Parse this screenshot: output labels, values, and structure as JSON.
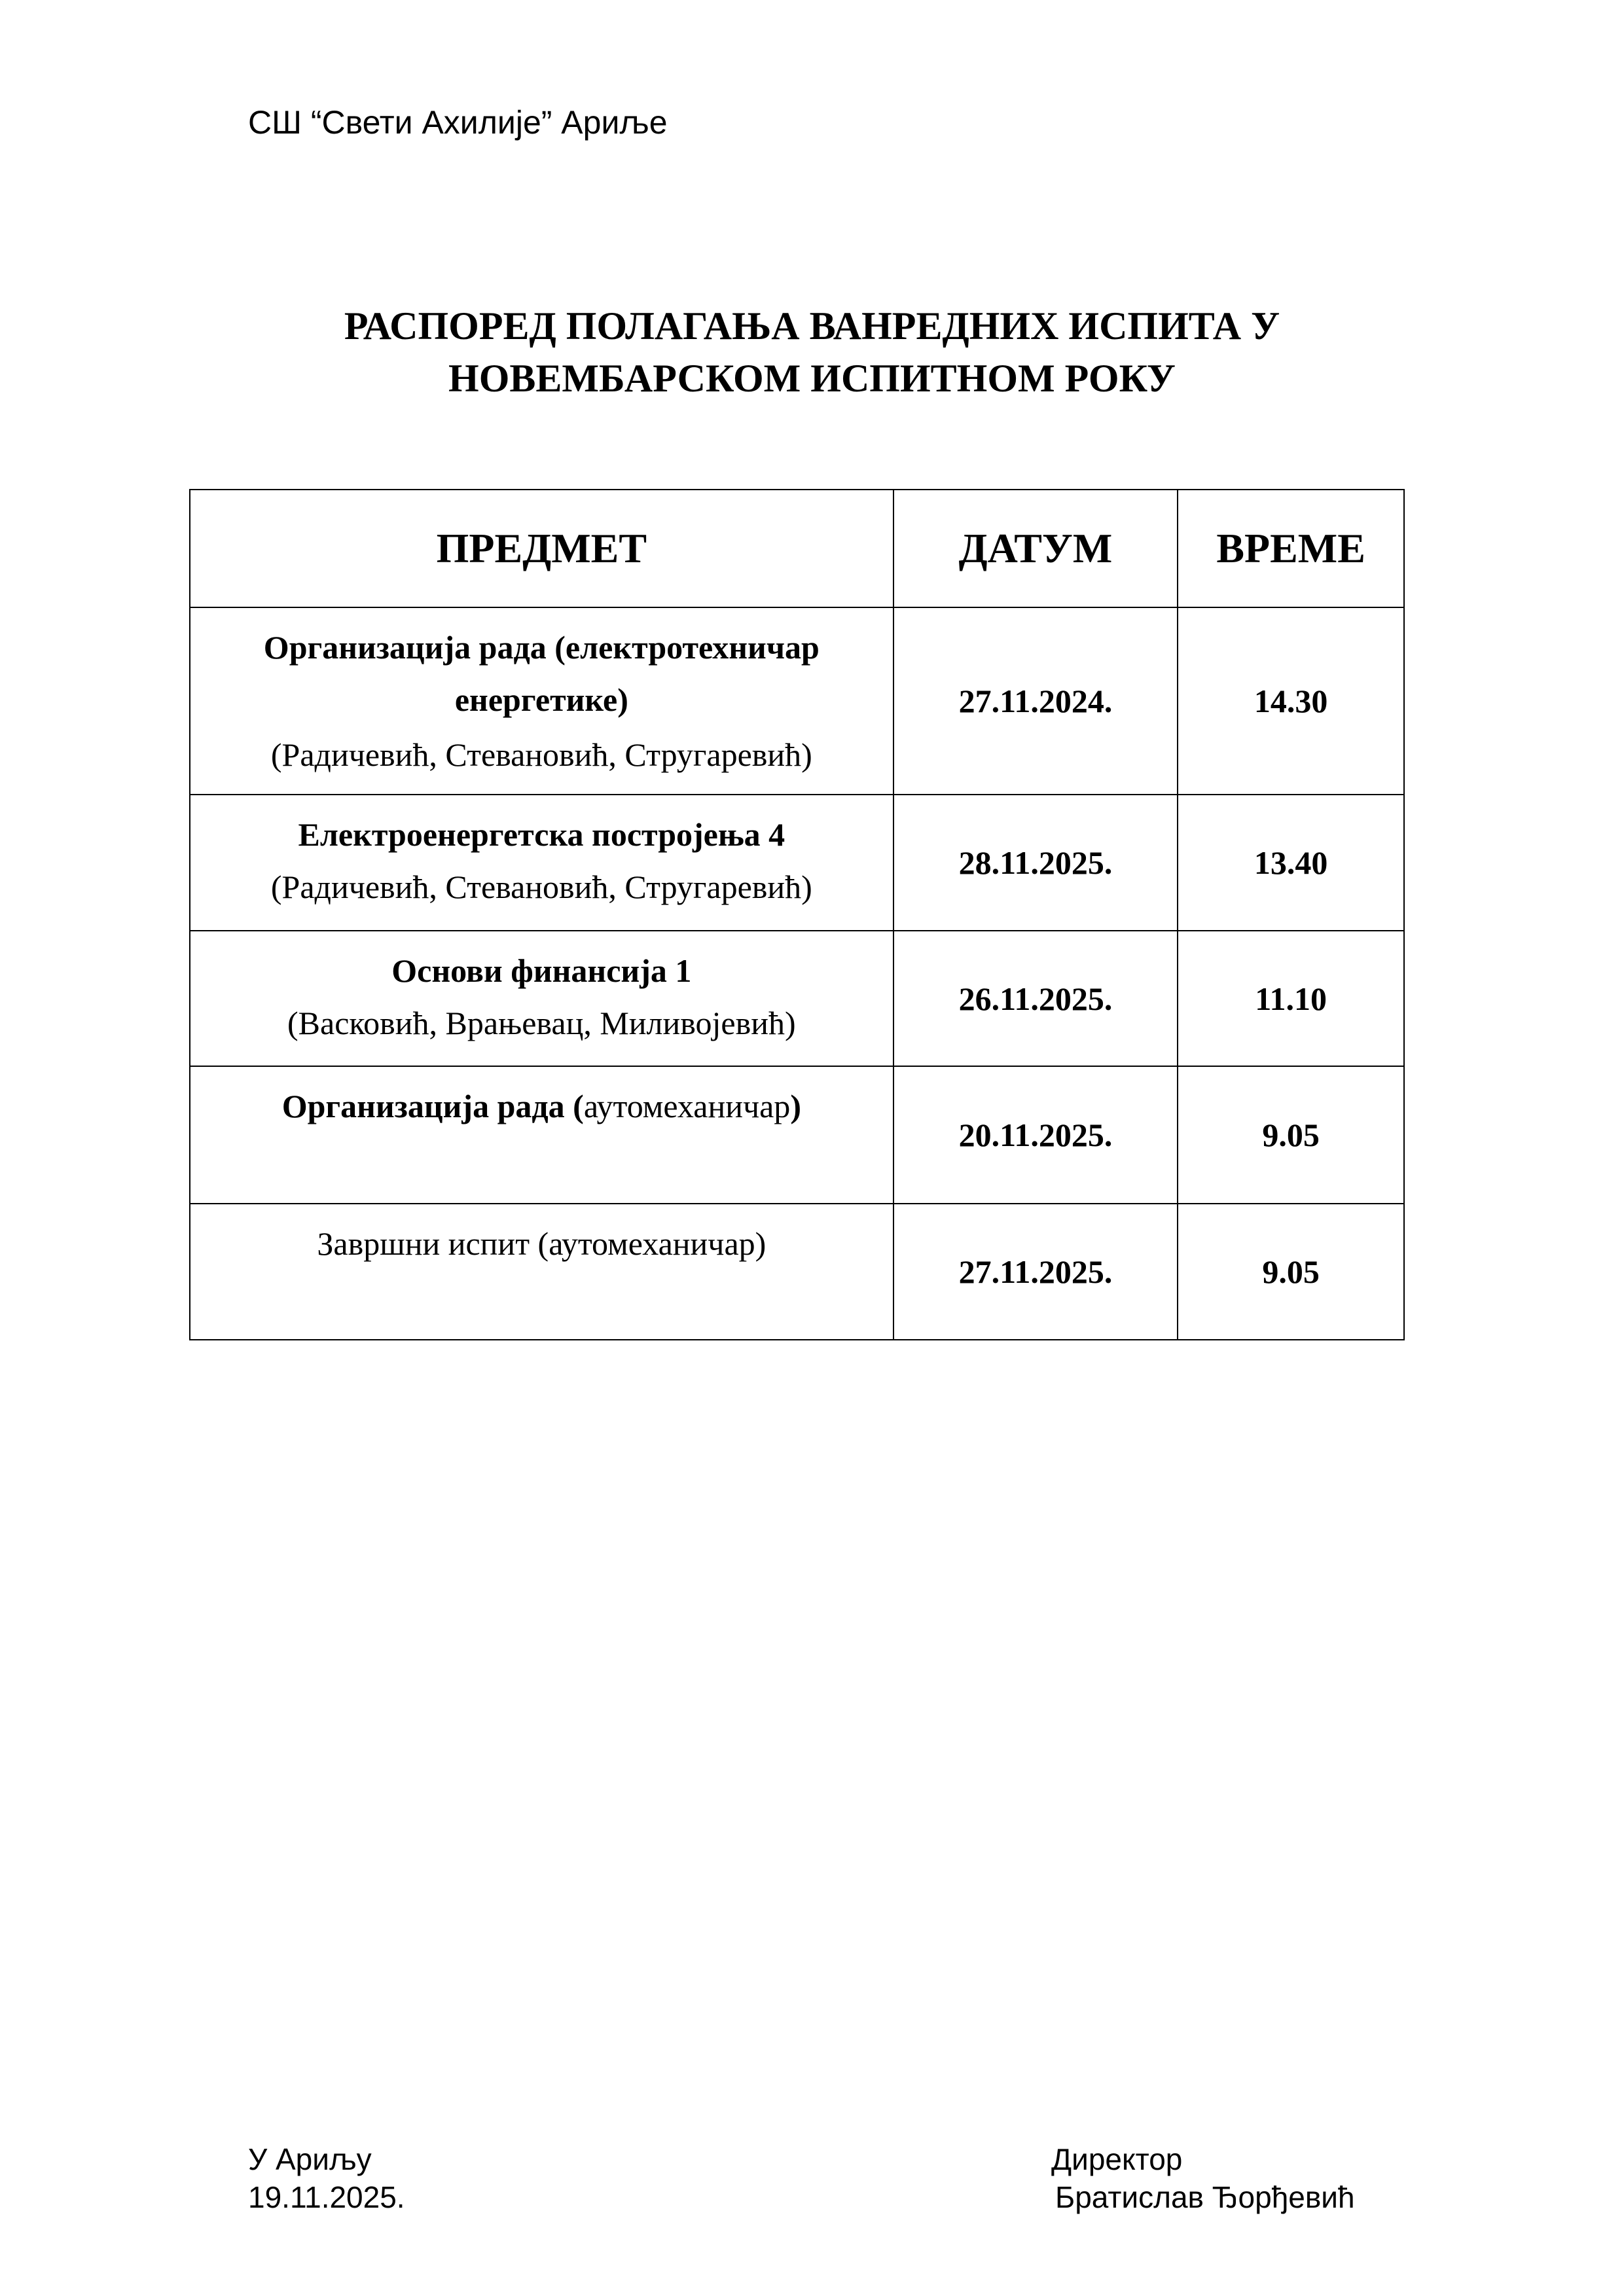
{
  "header": {
    "school": "СШ “Свети Ахилије” Ариље"
  },
  "title": {
    "line1": "РАСПОРЕД ПОЛАГАЊА ВАНРЕДНИХ ИСПИТА У",
    "line2": "НОВЕМБАРСКОМ ИСПИТНОМ РОКУ"
  },
  "table": {
    "columns": [
      "ПРЕДМЕТ",
      "ДАТУМ",
      "ВРЕМЕ"
    ],
    "rows": [
      {
        "subject_bold": "Организација рада (електротехничар енергетике)",
        "subject_plain": "",
        "committee": "(Радичевић, Стевановић, Стругаревић)",
        "date": "27.11.2024.",
        "time": "14.30"
      },
      {
        "subject_bold": "Електроенергетска постројења 4",
        "subject_plain": "",
        "committee": "(Радичевић, Стевановић, Стругаревић)",
        "date": "28.11.2025.",
        "time": "13.40"
      },
      {
        "subject_bold": "Основи финансија 1",
        "subject_plain": "",
        "committee": "(Васковић, Врањевац, Миливојевић)",
        "date": "26.11.2025.",
        "time": "11.10"
      },
      {
        "subject_bold": "Организација рада (",
        "subject_plain": "аутомеханичар",
        "subject_bold_end": ")",
        "committee": "",
        "date": "20.11.2025.",
        "time": "9.05"
      },
      {
        "subject_bold": "",
        "subject_plain": "Завршни испит (аутомеханичар)",
        "committee": "",
        "date": "27.11.2025.",
        "time": "9.05"
      }
    ]
  },
  "footer": {
    "place": "У Ариљу",
    "date": "19.11.2025.",
    "role": "Директор",
    "name": "Братислав Ђорђевић"
  }
}
